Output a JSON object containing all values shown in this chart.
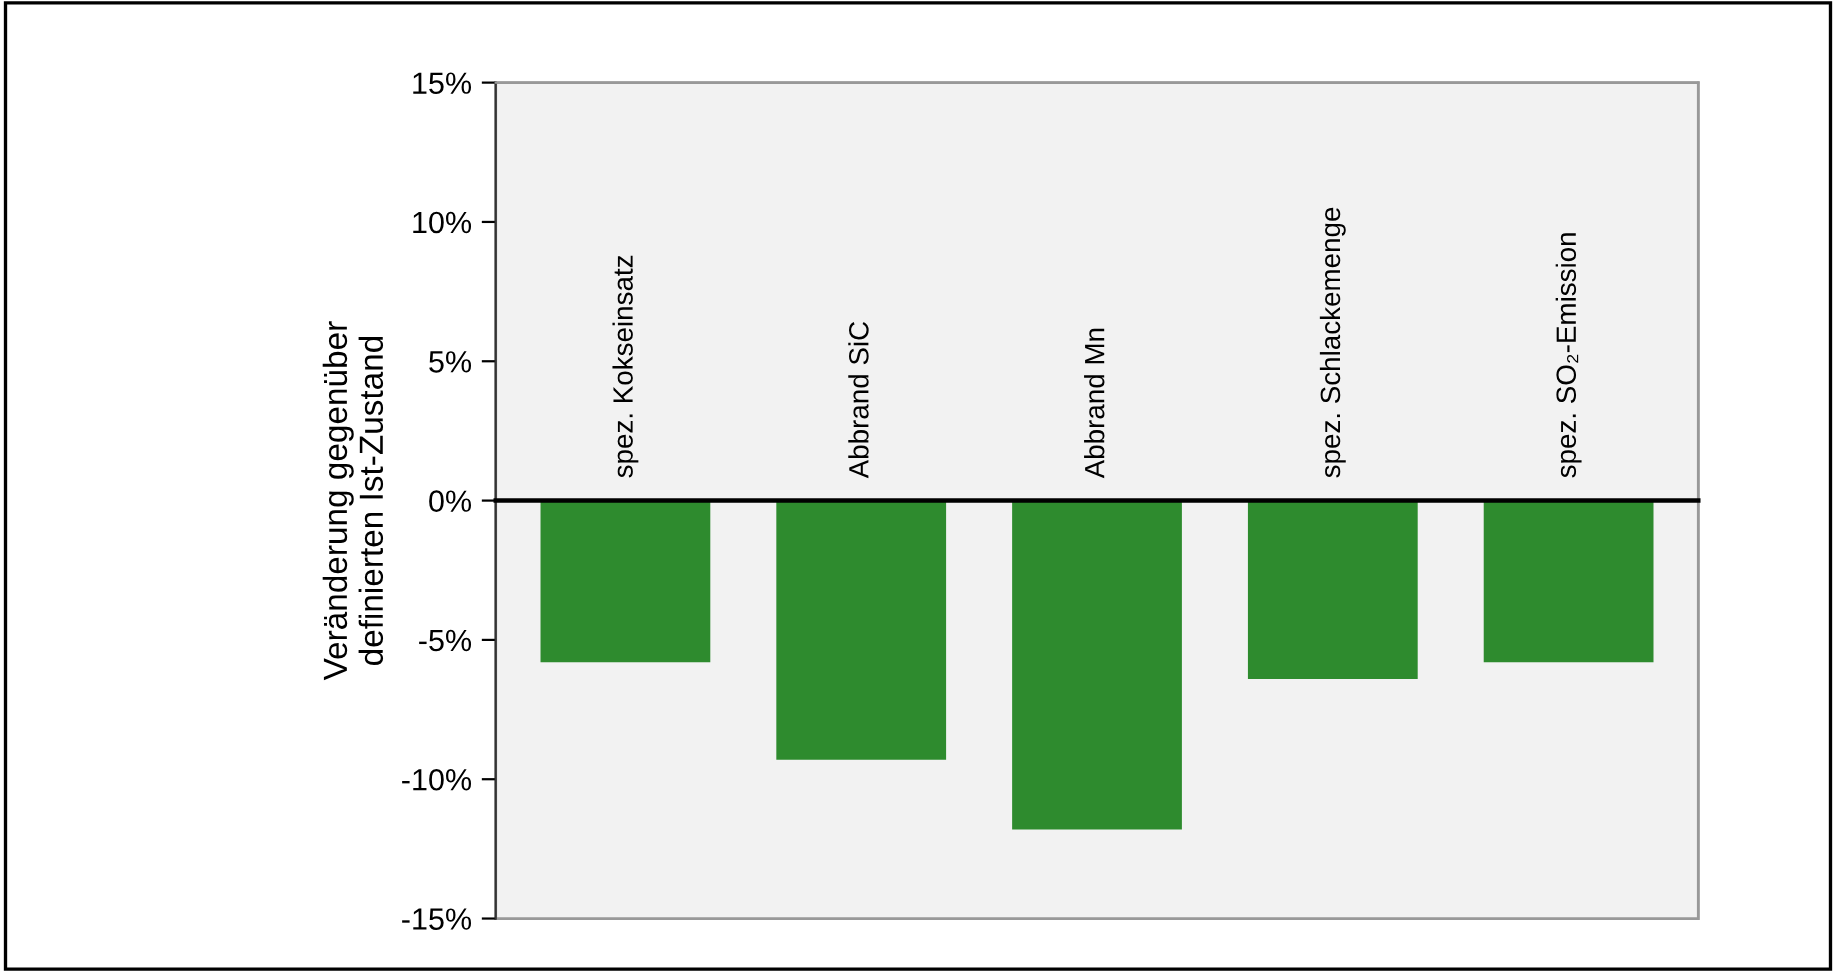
{
  "chart_data": {
    "type": "bar",
    "ylabel": "Veränderung gegenüber\ndefinierten Ist-Zustand",
    "categories": [
      "spez. Kokseinsatz",
      "Abbrand SiC",
      "Abbrand Mn",
      "spez. Schlackemenge",
      "spez. SO₂-Emission"
    ],
    "values": [
      -5.8,
      -9.3,
      -11.8,
      -6.4,
      -5.8
    ],
    "color": "#2e8b2e",
    "ylim": [
      -15,
      15
    ],
    "yticks": [
      {
        "value": -15,
        "label": "-15%"
      },
      {
        "value": -10,
        "label": "-10%"
      },
      {
        "value": -5,
        "label": "-5%"
      },
      {
        "value": 0,
        "label": "0%"
      },
      {
        "value": 5,
        "label": "5%"
      },
      {
        "value": 10,
        "label": "10%"
      },
      {
        "value": 15,
        "label": "15%"
      }
    ],
    "grid": false
  }
}
